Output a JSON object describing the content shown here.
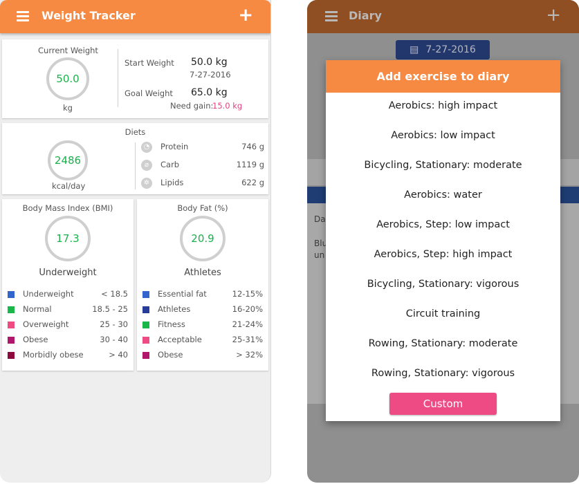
{
  "left_app": {
    "title": "Weight Tracker",
    "weight": {
      "current_label": "Current Weight",
      "current_value": "50.0",
      "current_unit": "kg",
      "start_label": "Start Weight",
      "start_value": "50.0 kg",
      "start_date": "7-27-2016",
      "goal_label": "Goal Weight",
      "goal_value": "65.0 kg",
      "need_label": "Need gain:",
      "need_value": "15.0 kg"
    },
    "diets": {
      "title": "Diets",
      "kcal_value": "2486",
      "kcal_unit": "kcal/day",
      "items": [
        {
          "name": "Protein",
          "grams": "746 g"
        },
        {
          "name": "Carb",
          "grams": "1119 g"
        },
        {
          "name": "Lipids",
          "grams": "622 g"
        }
      ]
    },
    "bmi": {
      "title": "Body Mass Index (BMI)",
      "value": "17.3",
      "category": "Underweight",
      "legend": [
        {
          "label": "Underweight",
          "range": "< 18.5",
          "color": "#3366cc"
        },
        {
          "label": "Normal",
          "range": "18.5 - 25",
          "color": "#19b74a"
        },
        {
          "label": "Overweight",
          "range": "25 - 30",
          "color": "#ee4a84"
        },
        {
          "label": "Obese",
          "range": "30 - 40",
          "color": "#b0166b"
        },
        {
          "label": "Morbidly obese",
          "range": "> 40",
          "color": "#8c0a3e"
        }
      ]
    },
    "body_fat": {
      "title": "Body Fat (%)",
      "value": "20.9",
      "category": "Athletes",
      "legend": [
        {
          "label": "Essential fat",
          "range": "12-15%",
          "color": "#3366cc"
        },
        {
          "label": "Athletes",
          "range": "16-20%",
          "color": "#263d99"
        },
        {
          "label": "Fitness",
          "range": "21-24%",
          "color": "#19b74a"
        },
        {
          "label": "Acceptable",
          "range": "25-31%",
          "color": "#ee4a84"
        },
        {
          "label": "Obese",
          "range": "> 32%",
          "color": "#b0166b"
        }
      ]
    }
  },
  "right_app": {
    "title": "Diary",
    "date": "7-27-2016",
    "bg_text_1": "Da",
    "bg_text_2": "Blu",
    "bg_text_3": "un",
    "dialog": {
      "title": "Add exercise to diary",
      "options": [
        "Aerobics: high impact",
        "Aerobics: low impact",
        "Bicycling, Stationary: moderate",
        "Aerobics: water",
        "Aerobics, Step: low impact",
        "Aerobics, Step: high impact",
        "Bicycling, Stationary: vigorous",
        "Circuit training",
        "Rowing, Stationary: moderate",
        "Rowing, Stationary: vigorous"
      ],
      "custom_label": "Custom"
    }
  },
  "colors": {
    "accent": "#f68a42",
    "value_green": "#1ab04b",
    "pink": "#e0427f"
  }
}
